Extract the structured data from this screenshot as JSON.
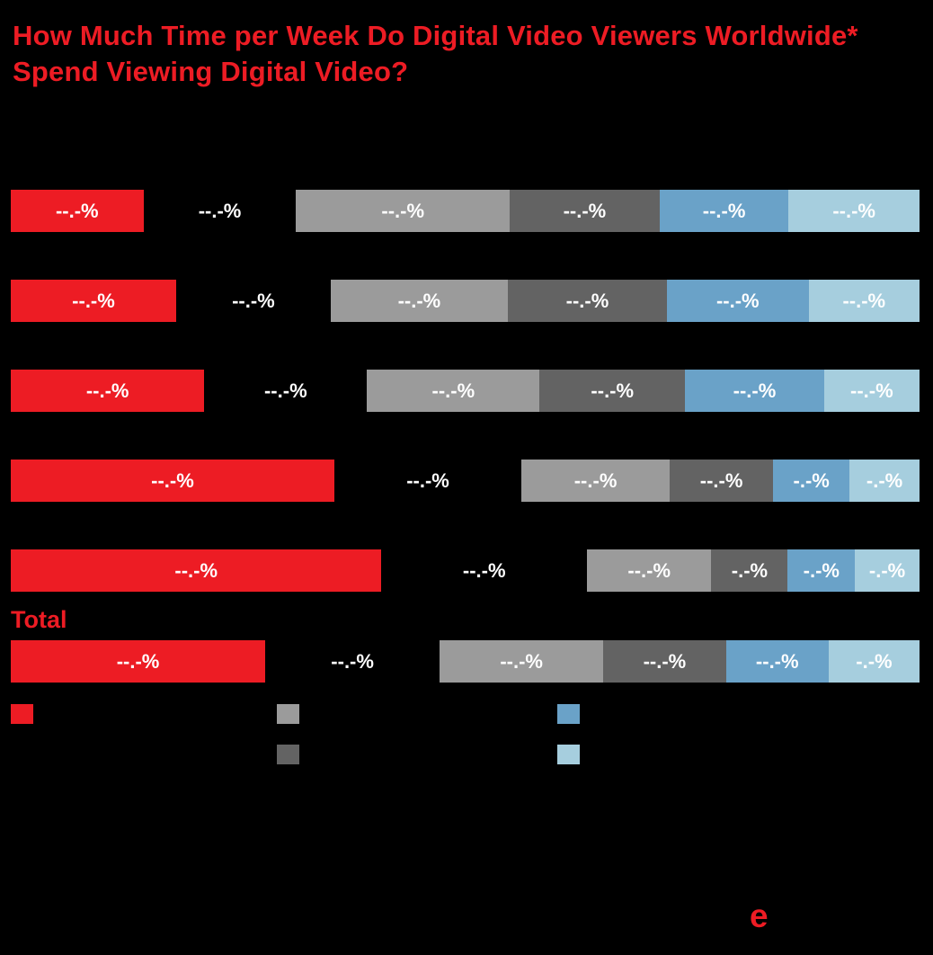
{
  "background_color": "#000000",
  "colors": {
    "red": "#ed1c24",
    "hidden": "transparent",
    "gray": "#9b9b9b",
    "darkgray": "#636363",
    "blue": "#6aa2c8",
    "lightblue": "#a6cede",
    "label_text": "#ffffff"
  },
  "title": {
    "text": "How Much Time per Week Do Digital Video Viewers Worldwide* Spend Viewing Digital Video?"
  },
  "logo_text": "e",
  "chart_data": {
    "type": "bar",
    "variant": "horizontal-100pct-stacked",
    "title": "How Much Time per Week Do Digital Video Viewers Worldwide* Spend Viewing Digital Video?",
    "series_keys": [
      "red",
      "hidden",
      "gray",
      "darkgray",
      "blue",
      "lightblue"
    ],
    "legend": [
      {
        "key": "red"
      },
      {
        "key": "gray"
      },
      {
        "key": "darkgray"
      },
      {
        "key": "blue"
      },
      {
        "key": "lightblue"
      }
    ],
    "rows": [
      {
        "row_label": "",
        "segments": [
          {
            "key": "red",
            "width_pct": 14.6,
            "label": "--.-%"
          },
          {
            "key": "hidden",
            "width_pct": 16.8,
            "label": "--.-%"
          },
          {
            "key": "gray",
            "width_pct": 23.5,
            "label": "--.-%"
          },
          {
            "key": "darkgray",
            "width_pct": 16.5,
            "label": "--.-%"
          },
          {
            "key": "blue",
            "width_pct": 14.2,
            "label": "--.-%"
          },
          {
            "key": "lightblue",
            "width_pct": 14.4,
            "label": "--.-%"
          }
        ]
      },
      {
        "row_label": "",
        "segments": [
          {
            "key": "red",
            "width_pct": 18.2,
            "label": "--.-%"
          },
          {
            "key": "hidden",
            "width_pct": 17.0,
            "label": "--.-%"
          },
          {
            "key": "gray",
            "width_pct": 19.5,
            "label": "--.-%"
          },
          {
            "key": "darkgray",
            "width_pct": 17.5,
            "label": "--.-%"
          },
          {
            "key": "blue",
            "width_pct": 15.6,
            "label": "--.-%"
          },
          {
            "key": "lightblue",
            "width_pct": 12.2,
            "label": "--.-%"
          }
        ]
      },
      {
        "row_label": "",
        "segments": [
          {
            "key": "red",
            "width_pct": 21.3,
            "label": "--.-%"
          },
          {
            "key": "hidden",
            "width_pct": 17.9,
            "label": "--.-%"
          },
          {
            "key": "gray",
            "width_pct": 19.0,
            "label": "--.-%"
          },
          {
            "key": "darkgray",
            "width_pct": 16.0,
            "label": "--.-%"
          },
          {
            "key": "blue",
            "width_pct": 15.3,
            "label": "--.-%"
          },
          {
            "key": "lightblue",
            "width_pct": 10.5,
            "label": "--.-%"
          }
        ]
      },
      {
        "row_label": "",
        "segments": [
          {
            "key": "red",
            "width_pct": 35.6,
            "label": "--.-%"
          },
          {
            "key": "hidden",
            "width_pct": 20.6,
            "label": "--.-%"
          },
          {
            "key": "gray",
            "width_pct": 16.3,
            "label": "--.-%"
          },
          {
            "key": "darkgray",
            "width_pct": 11.4,
            "label": "--.-%"
          },
          {
            "key": "blue",
            "width_pct": 8.4,
            "label": "-.-%"
          },
          {
            "key": "lightblue",
            "width_pct": 7.7,
            "label": "-.-%"
          }
        ]
      },
      {
        "row_label": "",
        "segments": [
          {
            "key": "red",
            "width_pct": 40.8,
            "label": "--.-%"
          },
          {
            "key": "hidden",
            "width_pct": 22.6,
            "label": "--.-%"
          },
          {
            "key": "gray",
            "width_pct": 13.7,
            "label": "--.-%"
          },
          {
            "key": "darkgray",
            "width_pct": 8.4,
            "label": "-.-%"
          },
          {
            "key": "blue",
            "width_pct": 7.4,
            "label": "-.-%"
          },
          {
            "key": "lightblue",
            "width_pct": 7.1,
            "label": "-.-%"
          }
        ]
      },
      {
        "row_label": "Total",
        "segments": [
          {
            "key": "red",
            "width_pct": 28.0,
            "label": "--.-%"
          },
          {
            "key": "hidden",
            "width_pct": 19.2,
            "label": "--.-%"
          },
          {
            "key": "gray",
            "width_pct": 18.0,
            "label": "--.-%"
          },
          {
            "key": "darkgray",
            "width_pct": 13.5,
            "label": "--.-%"
          },
          {
            "key": "blue",
            "width_pct": 11.3,
            "label": "--.-%"
          },
          {
            "key": "lightblue",
            "width_pct": 10.0,
            "label": "-.-%"
          }
        ]
      }
    ]
  }
}
